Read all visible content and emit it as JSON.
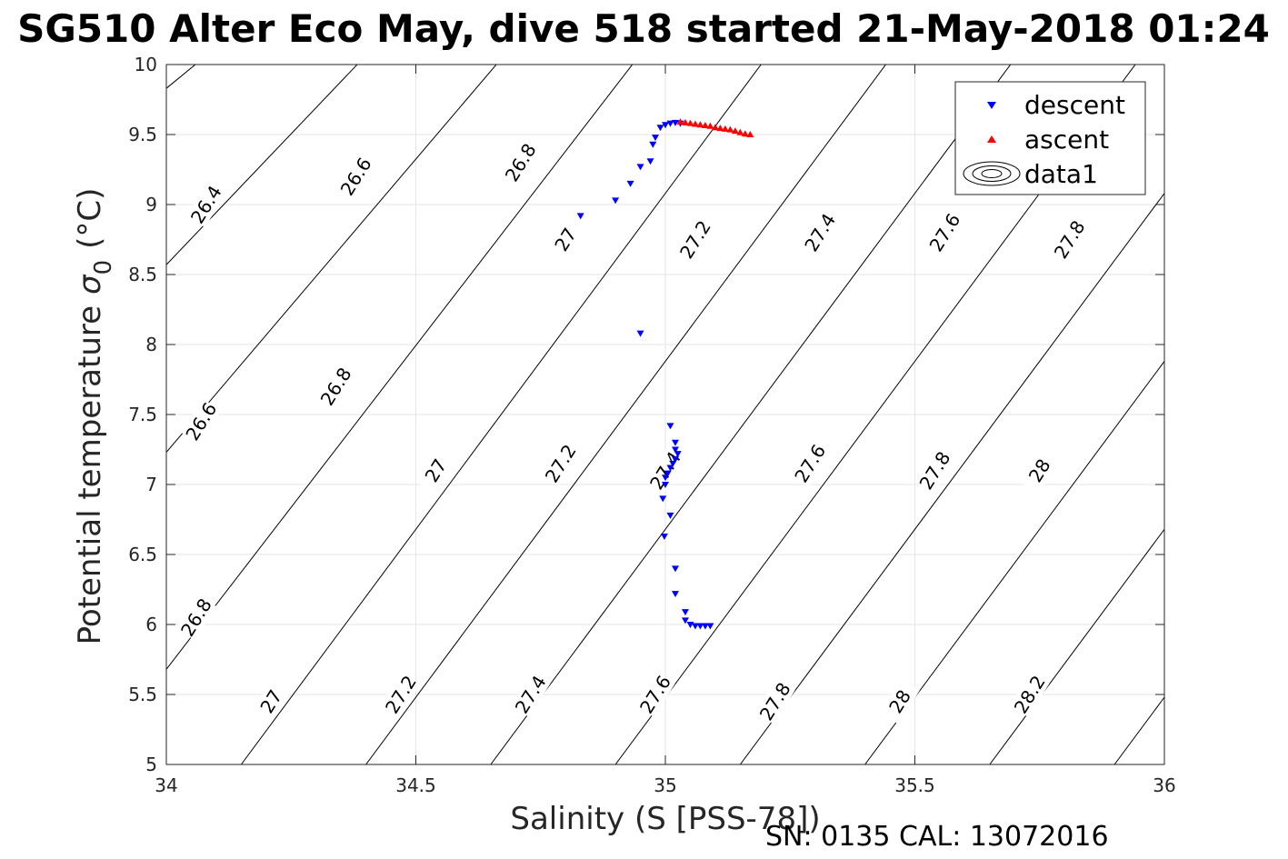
{
  "chart_data": {
    "type": "scatter",
    "title": "SG510 Alter Eco May, dive 518 started 21-May-2018 01:24",
    "xlabel": "Salinity (S [PSS-78])",
    "ylabel": "Potential temperature",
    "ylabel_symbol": "σ",
    "ylabel_sub": "0",
    "ylabel_unit": "(°C)",
    "footer": "SN: 0135  CAL: 13072016",
    "xlim": [
      34,
      36
    ],
    "ylim": [
      5,
      10
    ],
    "xticks": [
      34,
      34.5,
      35,
      35.5,
      36
    ],
    "xtick_labels": [
      "34",
      "34.5",
      "35",
      "35.5",
      "36"
    ],
    "yticks": [
      5,
      5.5,
      6,
      6.5,
      7,
      7.5,
      8,
      8.5,
      9,
      9.5,
      10
    ],
    "ytick_labels": [
      "5",
      "5.5",
      "6",
      "6.5",
      "7",
      "7.5",
      "8",
      "8.5",
      "9",
      "9.5",
      "10"
    ],
    "grid": true,
    "legend_position": "top-right",
    "legend": [
      "descent",
      "ascent",
      "data1"
    ],
    "colors": {
      "descent": "#0000ff",
      "ascent": "#ff0000",
      "contour": "#000000",
      "grid": "#e6e6e6"
    },
    "contours": {
      "lines": [
        {
          "x0": 34.0,
          "y0": 9.83,
          "x1": 34.4,
          "y1": 11.0
        },
        {
          "x0": 34.0,
          "y0": 8.57,
          "x1": 34.65,
          "y1": 11.0
        },
        {
          "x0": 34.0,
          "y0": 7.23,
          "x1": 34.9,
          "y1": 11.0
        },
        {
          "x0": 34.0,
          "y0": 5.68,
          "x1": 35.15,
          "y1": 11.0
        },
        {
          "x0": 34.15,
          "y0": 5.0,
          "x1": 35.4,
          "y1": 11.0
        },
        {
          "x0": 34.4,
          "y0": 5.0,
          "x1": 35.65,
          "y1": 11.0
        },
        {
          "x0": 34.65,
          "y0": 5.0,
          "x1": 35.9,
          "y1": 11.0
        },
        {
          "x0": 34.9,
          "y0": 5.0,
          "x1": 36.15,
          "y1": 11.0
        },
        {
          "x0": 35.15,
          "y0": 5.0,
          "x1": 36.4,
          "y1": 11.0
        },
        {
          "x0": 35.4,
          "y0": 5.0,
          "x1": 36.65,
          "y1": 11.0
        },
        {
          "x0": 35.65,
          "y0": 5.0,
          "x1": 36.9,
          "y1": 11.0
        },
        {
          "x0": 35.9,
          "y0": 5.0,
          "x1": 37.15,
          "y1": 11.0
        }
      ],
      "labels": [
        {
          "text": "26.4",
          "x": 34.08,
          "y": 9.0
        },
        {
          "text": "26.6",
          "x": 34.38,
          "y": 9.2
        },
        {
          "text": "26.8",
          "x": 34.71,
          "y": 9.3
        },
        {
          "text": "27",
          "x": 34.8,
          "y": 8.75
        },
        {
          "text": "27.2",
          "x": 35.06,
          "y": 8.75
        },
        {
          "text": "27.4",
          "x": 35.31,
          "y": 8.8
        },
        {
          "text": "27.6",
          "x": 35.56,
          "y": 8.8
        },
        {
          "text": "27.8",
          "x": 35.81,
          "y": 8.75
        },
        {
          "text": "26.6",
          "x": 34.07,
          "y": 7.45
        },
        {
          "text": "26.8",
          "x": 34.34,
          "y": 7.7
        },
        {
          "text": "27",
          "x": 34.54,
          "y": 7.1
        },
        {
          "text": "27.2",
          "x": 34.79,
          "y": 7.15
        },
        {
          "text": "27.4",
          "x": 35.0,
          "y": 7.1
        },
        {
          "text": "27.6",
          "x": 35.29,
          "y": 7.15
        },
        {
          "text": "27.8",
          "x": 35.54,
          "y": 7.1
        },
        {
          "text": "28",
          "x": 35.75,
          "y": 7.1
        },
        {
          "text": "26.8",
          "x": 34.06,
          "y": 6.05
        },
        {
          "text": "27",
          "x": 34.21,
          "y": 5.45
        },
        {
          "text": "27.2",
          "x": 34.47,
          "y": 5.5
        },
        {
          "text": "27.4",
          "x": 34.73,
          "y": 5.5
        },
        {
          "text": "27.6",
          "x": 34.98,
          "y": 5.5
        },
        {
          "text": "27.8",
          "x": 35.22,
          "y": 5.45
        },
        {
          "text": "28",
          "x": 35.47,
          "y": 5.45
        },
        {
          "text": "28.2",
          "x": 35.73,
          "y": 5.5
        }
      ]
    },
    "series": [
      {
        "name": "descent",
        "marker": "triangle-down",
        "points": [
          [
            34.83,
            8.92
          ],
          [
            34.9,
            9.03
          ],
          [
            34.93,
            9.15
          ],
          [
            34.95,
            9.27
          ],
          [
            34.97,
            9.31
          ],
          [
            34.975,
            9.43
          ],
          [
            34.98,
            9.48
          ],
          [
            34.99,
            9.55
          ],
          [
            35.0,
            9.57
          ],
          [
            35.01,
            9.58
          ],
          [
            35.02,
            9.585
          ],
          [
            35.03,
            9.58
          ],
          [
            34.95,
            8.08
          ],
          [
            35.01,
            7.42
          ],
          [
            35.02,
            7.3
          ],
          [
            35.02,
            7.25
          ],
          [
            35.025,
            7.22
          ],
          [
            35.02,
            7.18
          ],
          [
            35.015,
            7.15
          ],
          [
            35.01,
            7.12
          ],
          [
            35.005,
            7.08
          ],
          [
            35.0,
            7.05
          ],
          [
            35.0,
            7.0
          ],
          [
            34.995,
            6.9
          ],
          [
            35.01,
            6.78
          ],
          [
            34.998,
            6.63
          ],
          [
            35.02,
            6.4
          ],
          [
            35.02,
            6.22
          ],
          [
            35.04,
            6.09
          ],
          [
            35.04,
            6.03
          ],
          [
            35.05,
            6.0
          ],
          [
            35.06,
            5.99
          ],
          [
            35.07,
            5.99
          ],
          [
            35.08,
            5.99
          ],
          [
            35.09,
            5.99
          ]
        ]
      },
      {
        "name": "ascent",
        "marker": "triangle-up",
        "points": [
          [
            35.03,
            9.59
          ],
          [
            35.04,
            9.585
          ],
          [
            35.05,
            9.58
          ],
          [
            35.06,
            9.575
          ],
          [
            35.07,
            9.57
          ],
          [
            35.08,
            9.565
          ],
          [
            35.09,
            9.56
          ],
          [
            35.1,
            9.55
          ],
          [
            35.11,
            9.545
          ],
          [
            35.12,
            9.54
          ],
          [
            35.13,
            9.535
          ],
          [
            35.14,
            9.525
          ],
          [
            35.15,
            9.515
          ],
          [
            35.16,
            9.505
          ],
          [
            35.17,
            9.5
          ]
        ]
      }
    ]
  }
}
